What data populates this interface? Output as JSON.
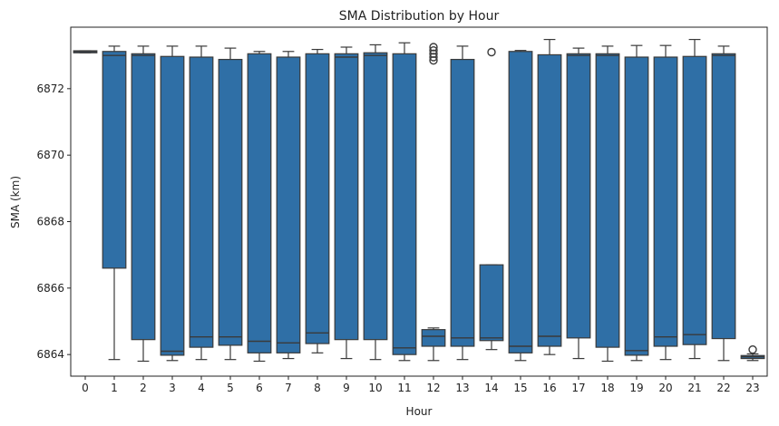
{
  "chart_data": {
    "type": "box",
    "title": "SMA Distribution by Hour",
    "xlabel": "Hour",
    "ylabel": "SMA (km)",
    "ylim": [
      6863.35,
      6873.85
    ],
    "yticks": [
      6864,
      6866,
      6868,
      6870,
      6872
    ],
    "grid": false,
    "color": "#2f6fa6",
    "edge_color": "#3a3a3a",
    "categories": [
      "0",
      "1",
      "2",
      "3",
      "4",
      "5",
      "6",
      "7",
      "8",
      "9",
      "10",
      "11",
      "12",
      "13",
      "14",
      "15",
      "16",
      "17",
      "18",
      "19",
      "20",
      "21",
      "22",
      "23"
    ],
    "boxes": [
      {
        "whisker_low": 6873.08,
        "q1": 6873.08,
        "median": 6873.12,
        "q3": 6873.14,
        "whisker_high": 6873.14,
        "outliers": []
      },
      {
        "whisker_low": 6863.85,
        "q1": 6866.6,
        "median": 6873.0,
        "q3": 6873.12,
        "whisker_high": 6873.28,
        "outliers": []
      },
      {
        "whisker_low": 6863.8,
        "q1": 6864.45,
        "median": 6873.0,
        "q3": 6873.05,
        "whisker_high": 6873.28,
        "outliers": []
      },
      {
        "whisker_low": 6863.82,
        "q1": 6863.98,
        "median": 6864.1,
        "q3": 6872.97,
        "whisker_high": 6873.28,
        "outliers": []
      },
      {
        "whisker_low": 6863.85,
        "q1": 6864.22,
        "median": 6864.53,
        "q3": 6872.95,
        "whisker_high": 6873.28,
        "outliers": []
      },
      {
        "whisker_low": 6863.85,
        "q1": 6864.28,
        "median": 6864.53,
        "q3": 6872.88,
        "whisker_high": 6873.22,
        "outliers": []
      },
      {
        "whisker_low": 6863.8,
        "q1": 6864.05,
        "median": 6864.4,
        "q3": 6873.05,
        "whisker_high": 6873.12,
        "outliers": []
      },
      {
        "whisker_low": 6863.88,
        "q1": 6864.05,
        "median": 6864.35,
        "q3": 6872.95,
        "whisker_high": 6873.12,
        "outliers": []
      },
      {
        "whisker_low": 6864.05,
        "q1": 6864.33,
        "median": 6864.65,
        "q3": 6873.05,
        "whisker_high": 6873.18,
        "outliers": []
      },
      {
        "whisker_low": 6863.88,
        "q1": 6864.45,
        "median": 6872.95,
        "q3": 6873.05,
        "whisker_high": 6873.25,
        "outliers": []
      },
      {
        "whisker_low": 6863.85,
        "q1": 6864.45,
        "median": 6873.0,
        "q3": 6873.08,
        "whisker_high": 6873.32,
        "outliers": []
      },
      {
        "whisker_low": 6863.82,
        "q1": 6864.0,
        "median": 6864.2,
        "q3": 6873.05,
        "whisker_high": 6873.38,
        "outliers": []
      },
      {
        "whisker_low": 6863.82,
        "q1": 6864.25,
        "median": 6864.55,
        "q3": 6864.75,
        "whisker_high": 6864.8,
        "outliers": [
          6872.85,
          6872.95,
          6873.05,
          6873.15,
          6873.25
        ]
      },
      {
        "whisker_low": 6863.85,
        "q1": 6864.25,
        "median": 6864.5,
        "q3": 6872.88,
        "whisker_high": 6873.28,
        "outliers": []
      },
      {
        "whisker_low": 6864.15,
        "q1": 6864.42,
        "median": 6864.5,
        "q3": 6866.7,
        "whisker_high": 6866.7,
        "outliers": [
          6873.1
        ]
      },
      {
        "whisker_low": 6863.82,
        "q1": 6864.05,
        "median": 6864.25,
        "q3": 6873.12,
        "whisker_high": 6873.15,
        "outliers": []
      },
      {
        "whisker_low": 6864.0,
        "q1": 6864.25,
        "median": 6864.55,
        "q3": 6873.02,
        "whisker_high": 6873.48,
        "outliers": []
      },
      {
        "whisker_low": 6863.88,
        "q1": 6864.5,
        "median": 6873.0,
        "q3": 6873.05,
        "whisker_high": 6873.22,
        "outliers": []
      },
      {
        "whisker_low": 6863.8,
        "q1": 6864.22,
        "median": 6873.0,
        "q3": 6873.05,
        "whisker_high": 6873.28,
        "outliers": []
      },
      {
        "whisker_low": 6863.82,
        "q1": 6863.98,
        "median": 6864.12,
        "q3": 6872.95,
        "whisker_high": 6873.3,
        "outliers": []
      },
      {
        "whisker_low": 6863.85,
        "q1": 6864.25,
        "median": 6864.53,
        "q3": 6872.95,
        "whisker_high": 6873.3,
        "outliers": []
      },
      {
        "whisker_low": 6863.88,
        "q1": 6864.3,
        "median": 6864.6,
        "q3": 6872.97,
        "whisker_high": 6873.48,
        "outliers": []
      },
      {
        "whisker_low": 6863.82,
        "q1": 6864.48,
        "median": 6873.0,
        "q3": 6873.05,
        "whisker_high": 6873.28,
        "outliers": []
      },
      {
        "whisker_low": 6863.82,
        "q1": 6863.88,
        "median": 6863.93,
        "q3": 6863.97,
        "whisker_high": 6864.02,
        "outliers": [
          6864.15
        ]
      }
    ]
  }
}
